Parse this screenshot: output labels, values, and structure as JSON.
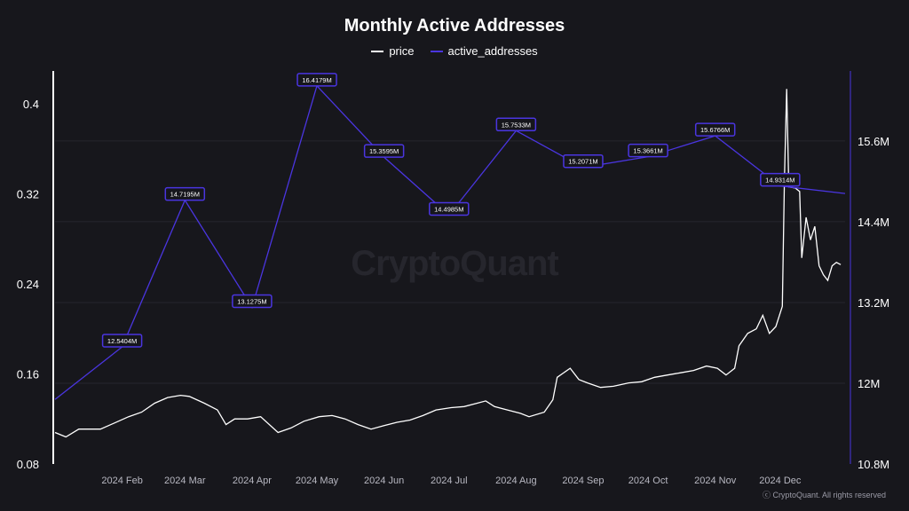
{
  "chart_data": {
    "type": "line",
    "title": "Monthly Active Addresses",
    "legend_placement": "top",
    "grid": true,
    "x_ticks": [
      "2024 Feb",
      "2024 Mar",
      "2024 Apr",
      "2024 May",
      "2024 Jun",
      "2024 Jul",
      "2024 Aug",
      "2024 Sep",
      "2024 Oct",
      "2024 Nov",
      "2024 Dec"
    ],
    "x_tick_dates": [
      "2024-02-01",
      "2024-03-01",
      "2024-04-01",
      "2024-05-01",
      "2024-06-01",
      "2024-07-01",
      "2024-08-01",
      "2024-09-01",
      "2024-10-01",
      "2024-11-01",
      "2024-12-01"
    ],
    "xlim": [
      "2024-01-01",
      "2024-12-31"
    ],
    "y_left": {
      "ticks": [
        0.08,
        0.16,
        0.24,
        0.32,
        0.4
      ],
      "tick_labels": [
        "0.08",
        "0.16",
        "0.24",
        "0.32",
        "0.4"
      ],
      "range": [
        0.08,
        0.429
      ]
    },
    "y_right": {
      "ticks": [
        10.8,
        12,
        13.2,
        14.4,
        15.6
      ],
      "tick_labels": [
        "10.8M",
        "12M",
        "13.2M",
        "14.4M",
        "15.6M"
      ],
      "range": [
        10.8,
        16.64
      ]
    },
    "series": [
      {
        "name": "price",
        "color": "#ffffff",
        "axis": "left",
        "points": [
          [
            "2024-01-01",
            0.108
          ],
          [
            "2024-01-06",
            0.104
          ],
          [
            "2024-01-12",
            0.111
          ],
          [
            "2024-01-22",
            0.111
          ],
          [
            "2024-01-28",
            0.116
          ],
          [
            "2024-02-04",
            0.122
          ],
          [
            "2024-02-10",
            0.126
          ],
          [
            "2024-02-16",
            0.134
          ],
          [
            "2024-02-22",
            0.139
          ],
          [
            "2024-02-28",
            0.141
          ],
          [
            "2024-03-03",
            0.14
          ],
          [
            "2024-03-10",
            0.134
          ],
          [
            "2024-03-16",
            0.128
          ],
          [
            "2024-03-20",
            0.115
          ],
          [
            "2024-03-24",
            0.12
          ],
          [
            "2024-03-30",
            0.12
          ],
          [
            "2024-04-05",
            0.122
          ],
          [
            "2024-04-13",
            0.108
          ],
          [
            "2024-04-19",
            0.112
          ],
          [
            "2024-04-25",
            0.118
          ],
          [
            "2024-05-02",
            0.122
          ],
          [
            "2024-05-08",
            0.123
          ],
          [
            "2024-05-14",
            0.12
          ],
          [
            "2024-05-20",
            0.115
          ],
          [
            "2024-05-26",
            0.111
          ],
          [
            "2024-06-01",
            0.114
          ],
          [
            "2024-06-07",
            0.117
          ],
          [
            "2024-06-13",
            0.119
          ],
          [
            "2024-06-19",
            0.123
          ],
          [
            "2024-06-25",
            0.128
          ],
          [
            "2024-07-02",
            0.13
          ],
          [
            "2024-07-08",
            0.131
          ],
          [
            "2024-07-14",
            0.134
          ],
          [
            "2024-07-18",
            0.136
          ],
          [
            "2024-07-22",
            0.131
          ],
          [
            "2024-07-28",
            0.128
          ],
          [
            "2024-08-03",
            0.125
          ],
          [
            "2024-08-07",
            0.122
          ],
          [
            "2024-08-14",
            0.126
          ],
          [
            "2024-08-18",
            0.137
          ],
          [
            "2024-08-20",
            0.157
          ],
          [
            "2024-08-26",
            0.165
          ],
          [
            "2024-08-30",
            0.155
          ],
          [
            "2024-09-03",
            0.152
          ],
          [
            "2024-09-09",
            0.148
          ],
          [
            "2024-09-15",
            0.149
          ],
          [
            "2024-09-22",
            0.152
          ],
          [
            "2024-09-28",
            0.153
          ],
          [
            "2024-10-04",
            0.157
          ],
          [
            "2024-10-10",
            0.159
          ],
          [
            "2024-10-16",
            0.161
          ],
          [
            "2024-10-22",
            0.163
          ],
          [
            "2024-10-28",
            0.167
          ],
          [
            "2024-11-02",
            0.165
          ],
          [
            "2024-11-06",
            0.159
          ],
          [
            "2024-11-10",
            0.165
          ],
          [
            "2024-11-12",
            0.185
          ],
          [
            "2024-11-16",
            0.196
          ],
          [
            "2024-11-20",
            0.2
          ],
          [
            "2024-11-23",
            0.212
          ],
          [
            "2024-11-26",
            0.196
          ],
          [
            "2024-11-29",
            0.202
          ],
          [
            "2024-12-02",
            0.22
          ],
          [
            "2024-12-03",
            0.334
          ],
          [
            "2024-12-04",
            0.413
          ],
          [
            "2024-12-05",
            0.326
          ],
          [
            "2024-12-08",
            0.325
          ],
          [
            "2024-12-10",
            0.322
          ],
          [
            "2024-12-11",
            0.263
          ],
          [
            "2024-12-13",
            0.299
          ],
          [
            "2024-12-15",
            0.279
          ],
          [
            "2024-12-17",
            0.291
          ],
          [
            "2024-12-19",
            0.256
          ],
          [
            "2024-12-21",
            0.248
          ],
          [
            "2024-12-23",
            0.243
          ],
          [
            "2024-12-25",
            0.256
          ],
          [
            "2024-12-27",
            0.259
          ],
          [
            "2024-12-29",
            0.257
          ]
        ]
      },
      {
        "name": "active_addresses",
        "color": "#4a35e0",
        "axis": "right",
        "points": [
          [
            "2024-01-01",
            11.76,
            ""
          ],
          [
            "2024-02-01",
            12.5404,
            "12.5404M"
          ],
          [
            "2024-03-01",
            14.7195,
            "14.7195M"
          ],
          [
            "2024-04-01",
            13.1275,
            "13.1275M"
          ],
          [
            "2024-05-01",
            16.4179,
            "16.4179M"
          ],
          [
            "2024-06-01",
            15.3595,
            "15.3595M"
          ],
          [
            "2024-07-01",
            14.4985,
            "14.4985M"
          ],
          [
            "2024-08-01",
            15.7533,
            "15.7533M"
          ],
          [
            "2024-09-01",
            15.2071,
            "15.2071M"
          ],
          [
            "2024-10-01",
            15.3661,
            "15.3661M"
          ],
          [
            "2024-11-01",
            15.6766,
            "15.6766M"
          ],
          [
            "2024-12-01",
            14.9314,
            "14.9314M"
          ],
          [
            "2024-12-31",
            14.82,
            ""
          ]
        ]
      }
    ]
  },
  "watermark": "CryptoQuant",
  "footer": "ⓒ CryptoQuant. All rights reserved"
}
